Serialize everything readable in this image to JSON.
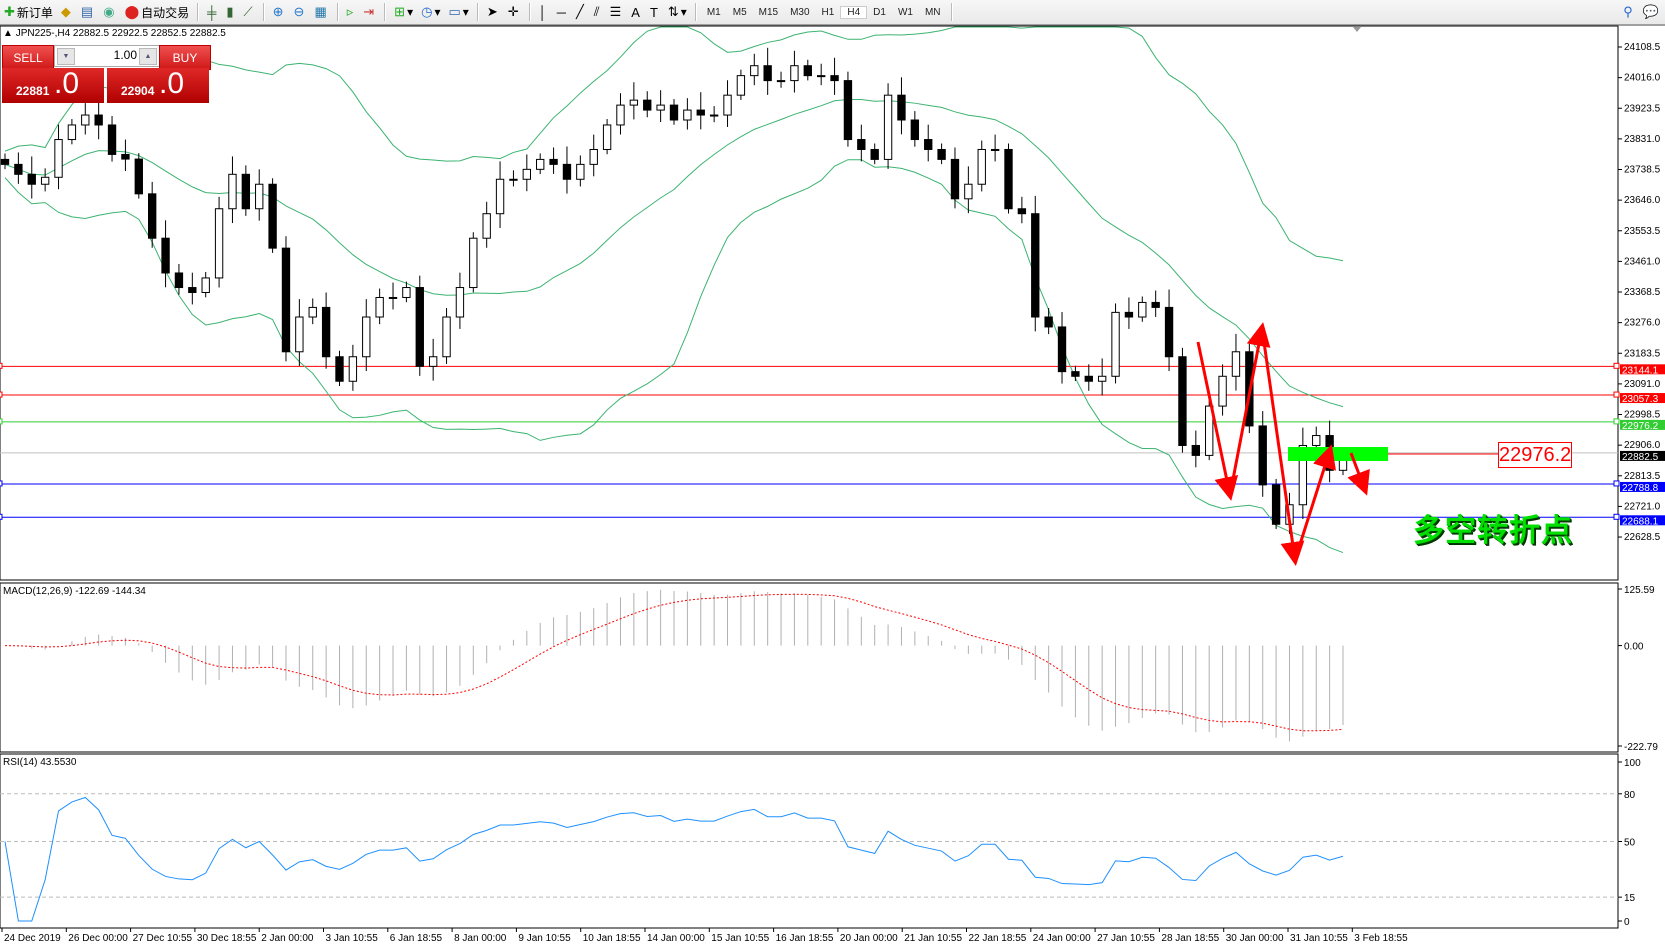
{
  "toolbar": {
    "new_order": "新订单",
    "auto_trading": "自动交易",
    "timeframes": [
      "M1",
      "M5",
      "M15",
      "M30",
      "H1",
      "H4",
      "D1",
      "W1",
      "MN"
    ],
    "active_timeframe": "H4"
  },
  "chart_header": {
    "symbol_info": "JPN225-,H4  22882.5 22922.5 22852.5 22882.5"
  },
  "trade_panel": {
    "sell_label": "SELL",
    "buy_label": "BUY",
    "lot": "1.00",
    "sell_price_main": "22881",
    "sell_price_big": ".0",
    "buy_price_main": "22904",
    "buy_price_big": ".0"
  },
  "price_axis": {
    "ticks": [
      "24108.5",
      "24016.0",
      "23923.5",
      "23831.0",
      "23738.5",
      "23646.0",
      "23553.5",
      "23461.0",
      "23368.5",
      "23276.0",
      "23183.5",
      "23091.0",
      "22998.5",
      "22906.0",
      "22813.5",
      "22721.0",
      "22628.5"
    ],
    "range": [
      22628.5,
      24108.5
    ]
  },
  "levels": [
    {
      "value": "23144.1",
      "color": "#ff0000"
    },
    {
      "value": "23057.3",
      "color": "#ff0000"
    },
    {
      "value": "22976.2",
      "color": "#32cd32"
    },
    {
      "value": "22882.5",
      "color": "#000000"
    },
    {
      "value": "22788.8",
      "color": "#0000ff"
    },
    {
      "value": "22688.1",
      "color": "#0000ff"
    }
  ],
  "annotations": {
    "price_label": "22976.2",
    "text": "多空转折点",
    "text_color": "#00e000",
    "arrow_color": "#ff0000",
    "zone_color": "#00ff00"
  },
  "macd": {
    "label": "MACD(12,26,9) -122.69 -144.34",
    "ticks": [
      "125.59",
      "0.00",
      "-222.79"
    ],
    "range": [
      -222.79,
      125.59
    ]
  },
  "rsi": {
    "label": "RSI(14) 43.5530",
    "ticks": [
      "100",
      "80",
      "50",
      "15",
      "0"
    ],
    "levels": [
      80,
      50,
      15
    ]
  },
  "time_axis": [
    "24 Dec 2019",
    "26 Dec 00:00",
    "27 Dec 10:55",
    "30 Dec 18:55",
    "2 Jan 00:00",
    "3 Jan 10:55",
    "6 Jan 18:55",
    "8 Jan 00:00",
    "9 Jan 10:55",
    "10 Jan 18:55",
    "14 Jan 00:00",
    "15 Jan 10:55",
    "16 Jan 18:55",
    "20 Jan 00:00",
    "21 Jan 10:55",
    "22 Jan 18:55",
    "24 Jan 00:00",
    "27 Jan 10:55",
    "28 Jan 18:55",
    "30 Jan 00:00",
    "31 Jan 10:55",
    "3 Feb 18:55"
  ],
  "chart_data": {
    "type": "candlestick",
    "symbol": "JPN225-",
    "timeframe": "H4",
    "closes": [
      23754,
      23724,
      23694,
      23715,
      23829,
      23873,
      23903,
      23873,
      23784,
      23770,
      23665,
      23531,
      23426,
      23382,
      23367,
      23411,
      23620,
      23724,
      23620,
      23694,
      23501,
      23188,
      23293,
      23322,
      23173,
      23099,
      23173,
      23293,
      23352,
      23352,
      23382,
      23144,
      23173,
      23293,
      23382,
      23531,
      23605,
      23709,
      23709,
      23739,
      23769,
      23754,
      23709,
      23754,
      23799,
      23873,
      23933,
      23948,
      23918,
      23933,
      23888,
      23918,
      23903,
      23903,
      23963,
      24022,
      24052,
      24007,
      24007,
      24052,
      24022,
      24022,
      24007,
      23829,
      23799,
      23769,
      23963,
      23888,
      23829,
      23799,
      23769,
      23650,
      23694,
      23799,
      23799,
      23620,
      23605,
      23293,
      23263,
      23128,
      23114,
      23099,
      23114,
      23307,
      23293,
      23337,
      23322,
      23173,
      22905,
      22875,
      23024,
      23114,
      23188,
      22964,
      22786,
      22667,
      22726,
      22905,
      22935,
      22830,
      22882.5
    ]
  }
}
